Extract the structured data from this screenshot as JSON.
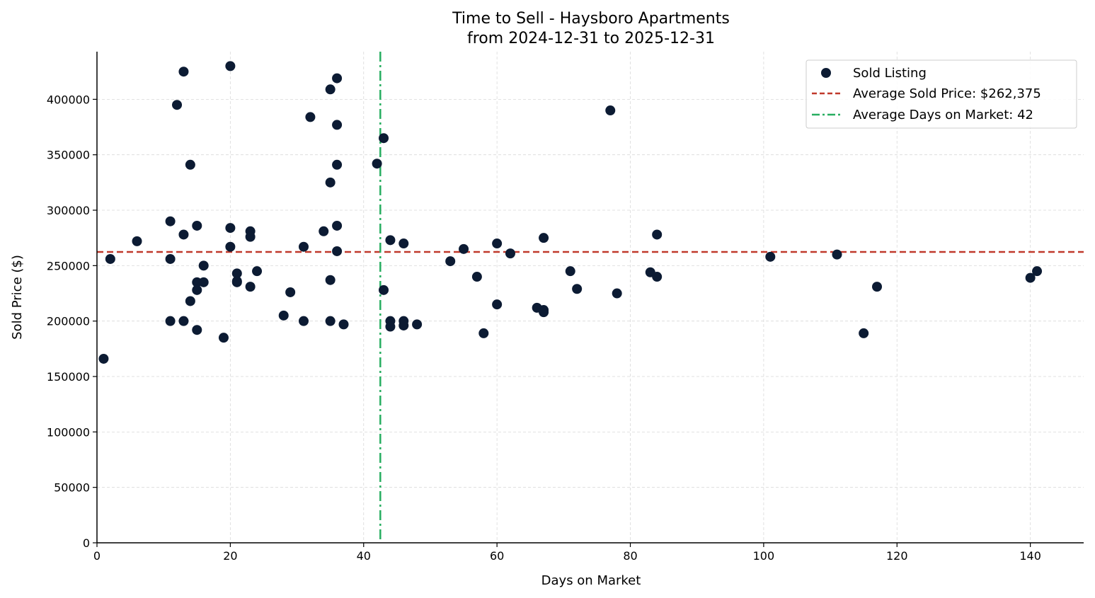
{
  "chart_data": {
    "type": "scatter",
    "title": "Time to Sell - Haysboro Apartments",
    "subtitle": "from 2024-12-31 to 2025-12-31",
    "xlabel": "Days on Market",
    "ylabel": "Sold Price ($)",
    "xlim": [
      0,
      148
    ],
    "ylim": [
      0,
      443000
    ],
    "x_ticks": [
      0,
      20,
      40,
      60,
      80,
      100,
      120,
      140
    ],
    "y_ticks": [
      0,
      50000,
      100000,
      150000,
      200000,
      250000,
      300000,
      350000,
      400000
    ],
    "grid": true,
    "legend_position": "top-right",
    "series": [
      {
        "name": "Sold Listing",
        "color": "#0c1b33",
        "points": [
          {
            "x": 1,
            "y": 166000
          },
          {
            "x": 2,
            "y": 256000
          },
          {
            "x": 6,
            "y": 272000
          },
          {
            "x": 11,
            "y": 290000
          },
          {
            "x": 11,
            "y": 256000
          },
          {
            "x": 11,
            "y": 200000
          },
          {
            "x": 12,
            "y": 395000
          },
          {
            "x": 13,
            "y": 425000
          },
          {
            "x": 13,
            "y": 278000
          },
          {
            "x": 13,
            "y": 200000
          },
          {
            "x": 14,
            "y": 341000
          },
          {
            "x": 14,
            "y": 218000
          },
          {
            "x": 15,
            "y": 286000
          },
          {
            "x": 15,
            "y": 235000
          },
          {
            "x": 15,
            "y": 228000
          },
          {
            "x": 15,
            "y": 192000
          },
          {
            "x": 16,
            "y": 250000
          },
          {
            "x": 16,
            "y": 235000
          },
          {
            "x": 19,
            "y": 185000
          },
          {
            "x": 20,
            "y": 430000
          },
          {
            "x": 20,
            "y": 284000
          },
          {
            "x": 20,
            "y": 267000
          },
          {
            "x": 21,
            "y": 243000
          },
          {
            "x": 21,
            "y": 236000
          },
          {
            "x": 21,
            "y": 235000
          },
          {
            "x": 23,
            "y": 281000
          },
          {
            "x": 23,
            "y": 276000
          },
          {
            "x": 23,
            "y": 231000
          },
          {
            "x": 24,
            "y": 245000
          },
          {
            "x": 28,
            "y": 205000
          },
          {
            "x": 29,
            "y": 226000
          },
          {
            "x": 31,
            "y": 267000
          },
          {
            "x": 31,
            "y": 200000
          },
          {
            "x": 32,
            "y": 384000
          },
          {
            "x": 34,
            "y": 281000
          },
          {
            "x": 35,
            "y": 409000
          },
          {
            "x": 35,
            "y": 325000
          },
          {
            "x": 35,
            "y": 237000
          },
          {
            "x": 35,
            "y": 200000
          },
          {
            "x": 36,
            "y": 419000
          },
          {
            "x": 36,
            "y": 377000
          },
          {
            "x": 36,
            "y": 341000
          },
          {
            "x": 36,
            "y": 286000
          },
          {
            "x": 36,
            "y": 263000
          },
          {
            "x": 37,
            "y": 197000
          },
          {
            "x": 42,
            "y": 342000
          },
          {
            "x": 43,
            "y": 365000
          },
          {
            "x": 43,
            "y": 228000
          },
          {
            "x": 44,
            "y": 273000
          },
          {
            "x": 44,
            "y": 200000
          },
          {
            "x": 44,
            "y": 195000
          },
          {
            "x": 46,
            "y": 270000
          },
          {
            "x": 46,
            "y": 200000
          },
          {
            "x": 46,
            "y": 196000
          },
          {
            "x": 48,
            "y": 197000
          },
          {
            "x": 53,
            "y": 254000
          },
          {
            "x": 55,
            "y": 265000
          },
          {
            "x": 57,
            "y": 240000
          },
          {
            "x": 58,
            "y": 189000
          },
          {
            "x": 60,
            "y": 270000
          },
          {
            "x": 60,
            "y": 215000
          },
          {
            "x": 62,
            "y": 261000
          },
          {
            "x": 66,
            "y": 212000
          },
          {
            "x": 67,
            "y": 275000
          },
          {
            "x": 67,
            "y": 210000
          },
          {
            "x": 67,
            "y": 208000
          },
          {
            "x": 71,
            "y": 245000
          },
          {
            "x": 72,
            "y": 229000
          },
          {
            "x": 77,
            "y": 390000
          },
          {
            "x": 78,
            "y": 225000
          },
          {
            "x": 83,
            "y": 244000
          },
          {
            "x": 84,
            "y": 278000
          },
          {
            "x": 84,
            "y": 240000
          },
          {
            "x": 101,
            "y": 258000
          },
          {
            "x": 111,
            "y": 260000
          },
          {
            "x": 115,
            "y": 189000
          },
          {
            "x": 117,
            "y": 231000
          },
          {
            "x": 140,
            "y": 239000
          },
          {
            "x": 141,
            "y": 245000
          }
        ]
      }
    ],
    "reference_lines": [
      {
        "name": "Average Sold Price: $262,375",
        "orientation": "horizontal",
        "value": 262375,
        "color": "#c0392b",
        "style": "dashed"
      },
      {
        "name": "Average Days on Market: 42",
        "orientation": "vertical",
        "value": 42.5,
        "color": "#27ae60",
        "style": "dashdot"
      }
    ]
  }
}
